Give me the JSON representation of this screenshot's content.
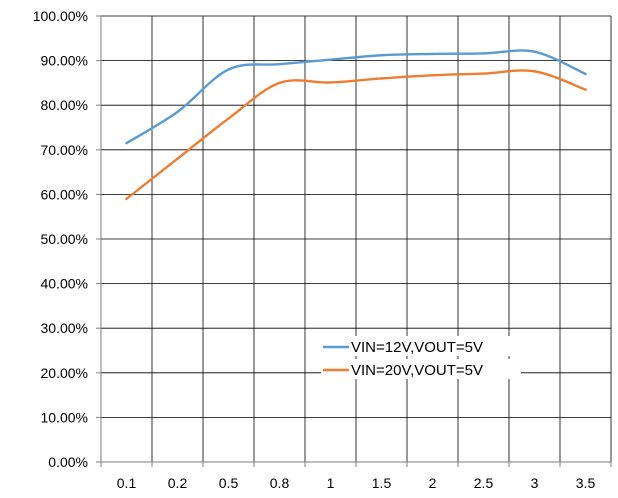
{
  "chart_data": {
    "type": "line",
    "title": "",
    "xlabel": "",
    "ylabel": "",
    "categories": [
      "0.1",
      "0.2",
      "0.5",
      "0.8",
      "1",
      "1.5",
      "2",
      "2.5",
      "3",
      "3.5"
    ],
    "ylim": [
      0,
      1.0
    ],
    "yticks": [
      "0.00%",
      "10.00%",
      "20.00%",
      "30.00%",
      "40.00%",
      "50.00%",
      "60.00%",
      "70.00%",
      "80.00%",
      "90.00%",
      "100.00%"
    ],
    "grid": true,
    "legend_position": "lower-right",
    "series": [
      {
        "name": "VIN=12V,VOUT=5V",
        "color": "#5b9bd5",
        "values": [
          0.715,
          0.785,
          0.88,
          0.892,
          0.902,
          0.912,
          0.915,
          0.916,
          0.92,
          0.87
        ]
      },
      {
        "name": "VIN=20V,VOUT=5V",
        "color": "#ed7d31",
        "values": [
          0.59,
          0.68,
          0.77,
          0.85,
          0.851,
          0.86,
          0.867,
          0.871,
          0.876,
          0.835
        ]
      }
    ]
  }
}
